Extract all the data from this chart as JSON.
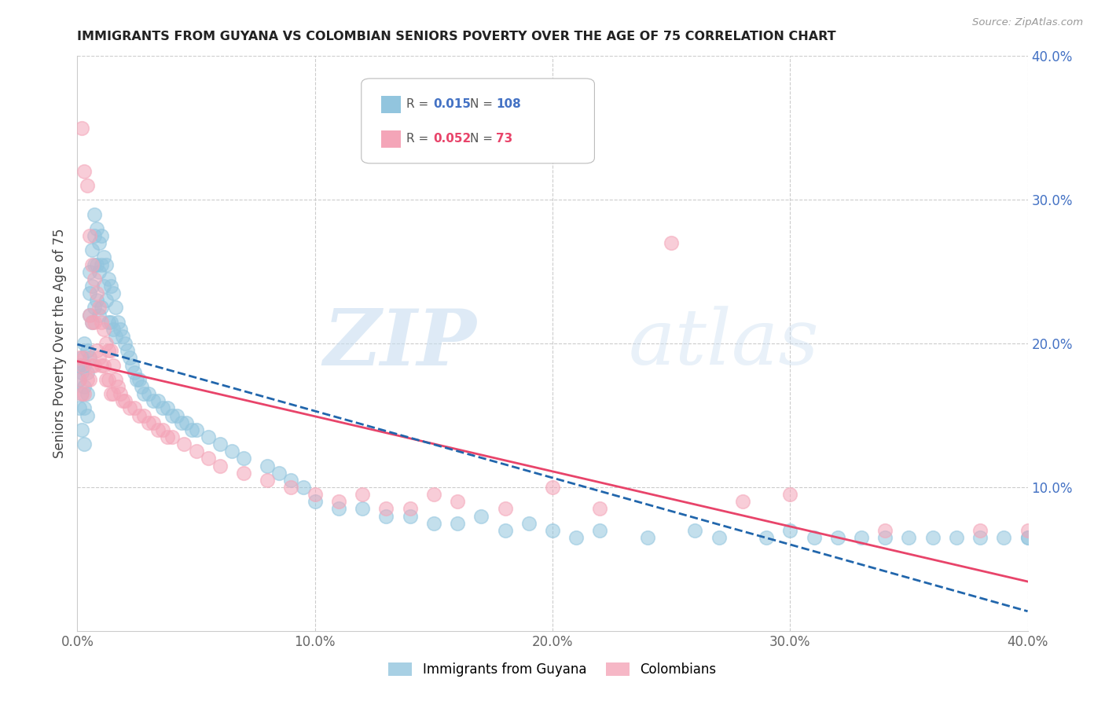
{
  "title": "IMMIGRANTS FROM GUYANA VS COLOMBIAN SENIORS POVERTY OVER THE AGE OF 75 CORRELATION CHART",
  "source": "Source: ZipAtlas.com",
  "ylabel": "Seniors Poverty Over the Age of 75",
  "xlim": [
    0.0,
    0.4
  ],
  "ylim": [
    0.0,
    0.4
  ],
  "xtick_labels": [
    "0.0%",
    "10.0%",
    "20.0%",
    "30.0%",
    "40.0%"
  ],
  "xtick_vals": [
    0.0,
    0.1,
    0.2,
    0.3,
    0.4
  ],
  "ytick_labels": [
    "40.0%",
    "30.0%",
    "20.0%",
    "10.0%"
  ],
  "ytick_vals_right": [
    0.4,
    0.3,
    0.2,
    0.1
  ],
  "legend_guyana": "Immigrants from Guyana",
  "legend_colombians": "Colombians",
  "r_guyana": "0.015",
  "n_guyana": "108",
  "r_colombians": "0.052",
  "n_colombians": "73",
  "color_guyana": "#92c5de",
  "color_colombians": "#f4a5b8",
  "color_guyana_line": "#2166ac",
  "color_colombians_line": "#e8446a",
  "color_right_axis": "#4472c4",
  "watermark_zip": "ZIP",
  "watermark_atlas": "atlas",
  "guyana_x": [
    0.001,
    0.001,
    0.001,
    0.002,
    0.002,
    0.002,
    0.002,
    0.003,
    0.003,
    0.003,
    0.003,
    0.003,
    0.004,
    0.004,
    0.004,
    0.004,
    0.005,
    0.005,
    0.005,
    0.005,
    0.006,
    0.006,
    0.006,
    0.007,
    0.007,
    0.007,
    0.007,
    0.008,
    0.008,
    0.008,
    0.009,
    0.009,
    0.009,
    0.01,
    0.01,
    0.01,
    0.011,
    0.011,
    0.012,
    0.012,
    0.013,
    0.013,
    0.014,
    0.014,
    0.015,
    0.015,
    0.016,
    0.016,
    0.017,
    0.018,
    0.019,
    0.02,
    0.021,
    0.022,
    0.023,
    0.024,
    0.025,
    0.026,
    0.027,
    0.028,
    0.03,
    0.032,
    0.034,
    0.036,
    0.038,
    0.04,
    0.042,
    0.044,
    0.046,
    0.048,
    0.05,
    0.055,
    0.06,
    0.065,
    0.07,
    0.08,
    0.085,
    0.09,
    0.095,
    0.1,
    0.11,
    0.12,
    0.13,
    0.14,
    0.15,
    0.16,
    0.17,
    0.18,
    0.19,
    0.2,
    0.21,
    0.22,
    0.24,
    0.26,
    0.27,
    0.29,
    0.3,
    0.31,
    0.32,
    0.33,
    0.34,
    0.35,
    0.36,
    0.37,
    0.38,
    0.39,
    0.4,
    0.4
  ],
  "guyana_y": [
    0.185,
    0.175,
    0.155,
    0.19,
    0.18,
    0.165,
    0.14,
    0.2,
    0.185,
    0.17,
    0.155,
    0.13,
    0.195,
    0.18,
    0.165,
    0.15,
    0.25,
    0.235,
    0.22,
    0.19,
    0.265,
    0.24,
    0.215,
    0.29,
    0.275,
    0.255,
    0.225,
    0.28,
    0.255,
    0.23,
    0.27,
    0.25,
    0.22,
    0.275,
    0.255,
    0.225,
    0.26,
    0.24,
    0.255,
    0.23,
    0.245,
    0.215,
    0.24,
    0.215,
    0.235,
    0.21,
    0.225,
    0.205,
    0.215,
    0.21,
    0.205,
    0.2,
    0.195,
    0.19,
    0.185,
    0.18,
    0.175,
    0.175,
    0.17,
    0.165,
    0.165,
    0.16,
    0.16,
    0.155,
    0.155,
    0.15,
    0.15,
    0.145,
    0.145,
    0.14,
    0.14,
    0.135,
    0.13,
    0.125,
    0.12,
    0.115,
    0.11,
    0.105,
    0.1,
    0.09,
    0.085,
    0.085,
    0.08,
    0.08,
    0.075,
    0.075,
    0.08,
    0.07,
    0.075,
    0.07,
    0.065,
    0.07,
    0.065,
    0.07,
    0.065,
    0.065,
    0.07,
    0.065,
    0.065,
    0.065,
    0.065,
    0.065,
    0.065,
    0.065,
    0.065,
    0.065,
    0.065,
    0.065
  ],
  "colombians_x": [
    0.001,
    0.001,
    0.002,
    0.002,
    0.002,
    0.003,
    0.003,
    0.003,
    0.004,
    0.004,
    0.005,
    0.005,
    0.005,
    0.006,
    0.006,
    0.006,
    0.007,
    0.007,
    0.007,
    0.008,
    0.008,
    0.009,
    0.009,
    0.01,
    0.01,
    0.011,
    0.011,
    0.012,
    0.012,
    0.013,
    0.013,
    0.014,
    0.014,
    0.015,
    0.015,
    0.016,
    0.017,
    0.018,
    0.019,
    0.02,
    0.022,
    0.024,
    0.026,
    0.028,
    0.03,
    0.032,
    0.034,
    0.036,
    0.038,
    0.04,
    0.045,
    0.05,
    0.055,
    0.06,
    0.07,
    0.08,
    0.09,
    0.1,
    0.11,
    0.12,
    0.13,
    0.14,
    0.15,
    0.16,
    0.18,
    0.2,
    0.22,
    0.25,
    0.28,
    0.3,
    0.34,
    0.38,
    0.4
  ],
  "colombians_y": [
    0.19,
    0.175,
    0.35,
    0.185,
    0.165,
    0.32,
    0.19,
    0.165,
    0.31,
    0.175,
    0.275,
    0.22,
    0.175,
    0.255,
    0.215,
    0.185,
    0.245,
    0.215,
    0.185,
    0.235,
    0.195,
    0.225,
    0.19,
    0.215,
    0.185,
    0.21,
    0.185,
    0.2,
    0.175,
    0.195,
    0.175,
    0.195,
    0.165,
    0.185,
    0.165,
    0.175,
    0.17,
    0.165,
    0.16,
    0.16,
    0.155,
    0.155,
    0.15,
    0.15,
    0.145,
    0.145,
    0.14,
    0.14,
    0.135,
    0.135,
    0.13,
    0.125,
    0.12,
    0.115,
    0.11,
    0.105,
    0.1,
    0.095,
    0.09,
    0.095,
    0.085,
    0.085,
    0.095,
    0.09,
    0.085,
    0.1,
    0.085,
    0.27,
    0.09,
    0.095,
    0.07,
    0.07,
    0.07
  ]
}
